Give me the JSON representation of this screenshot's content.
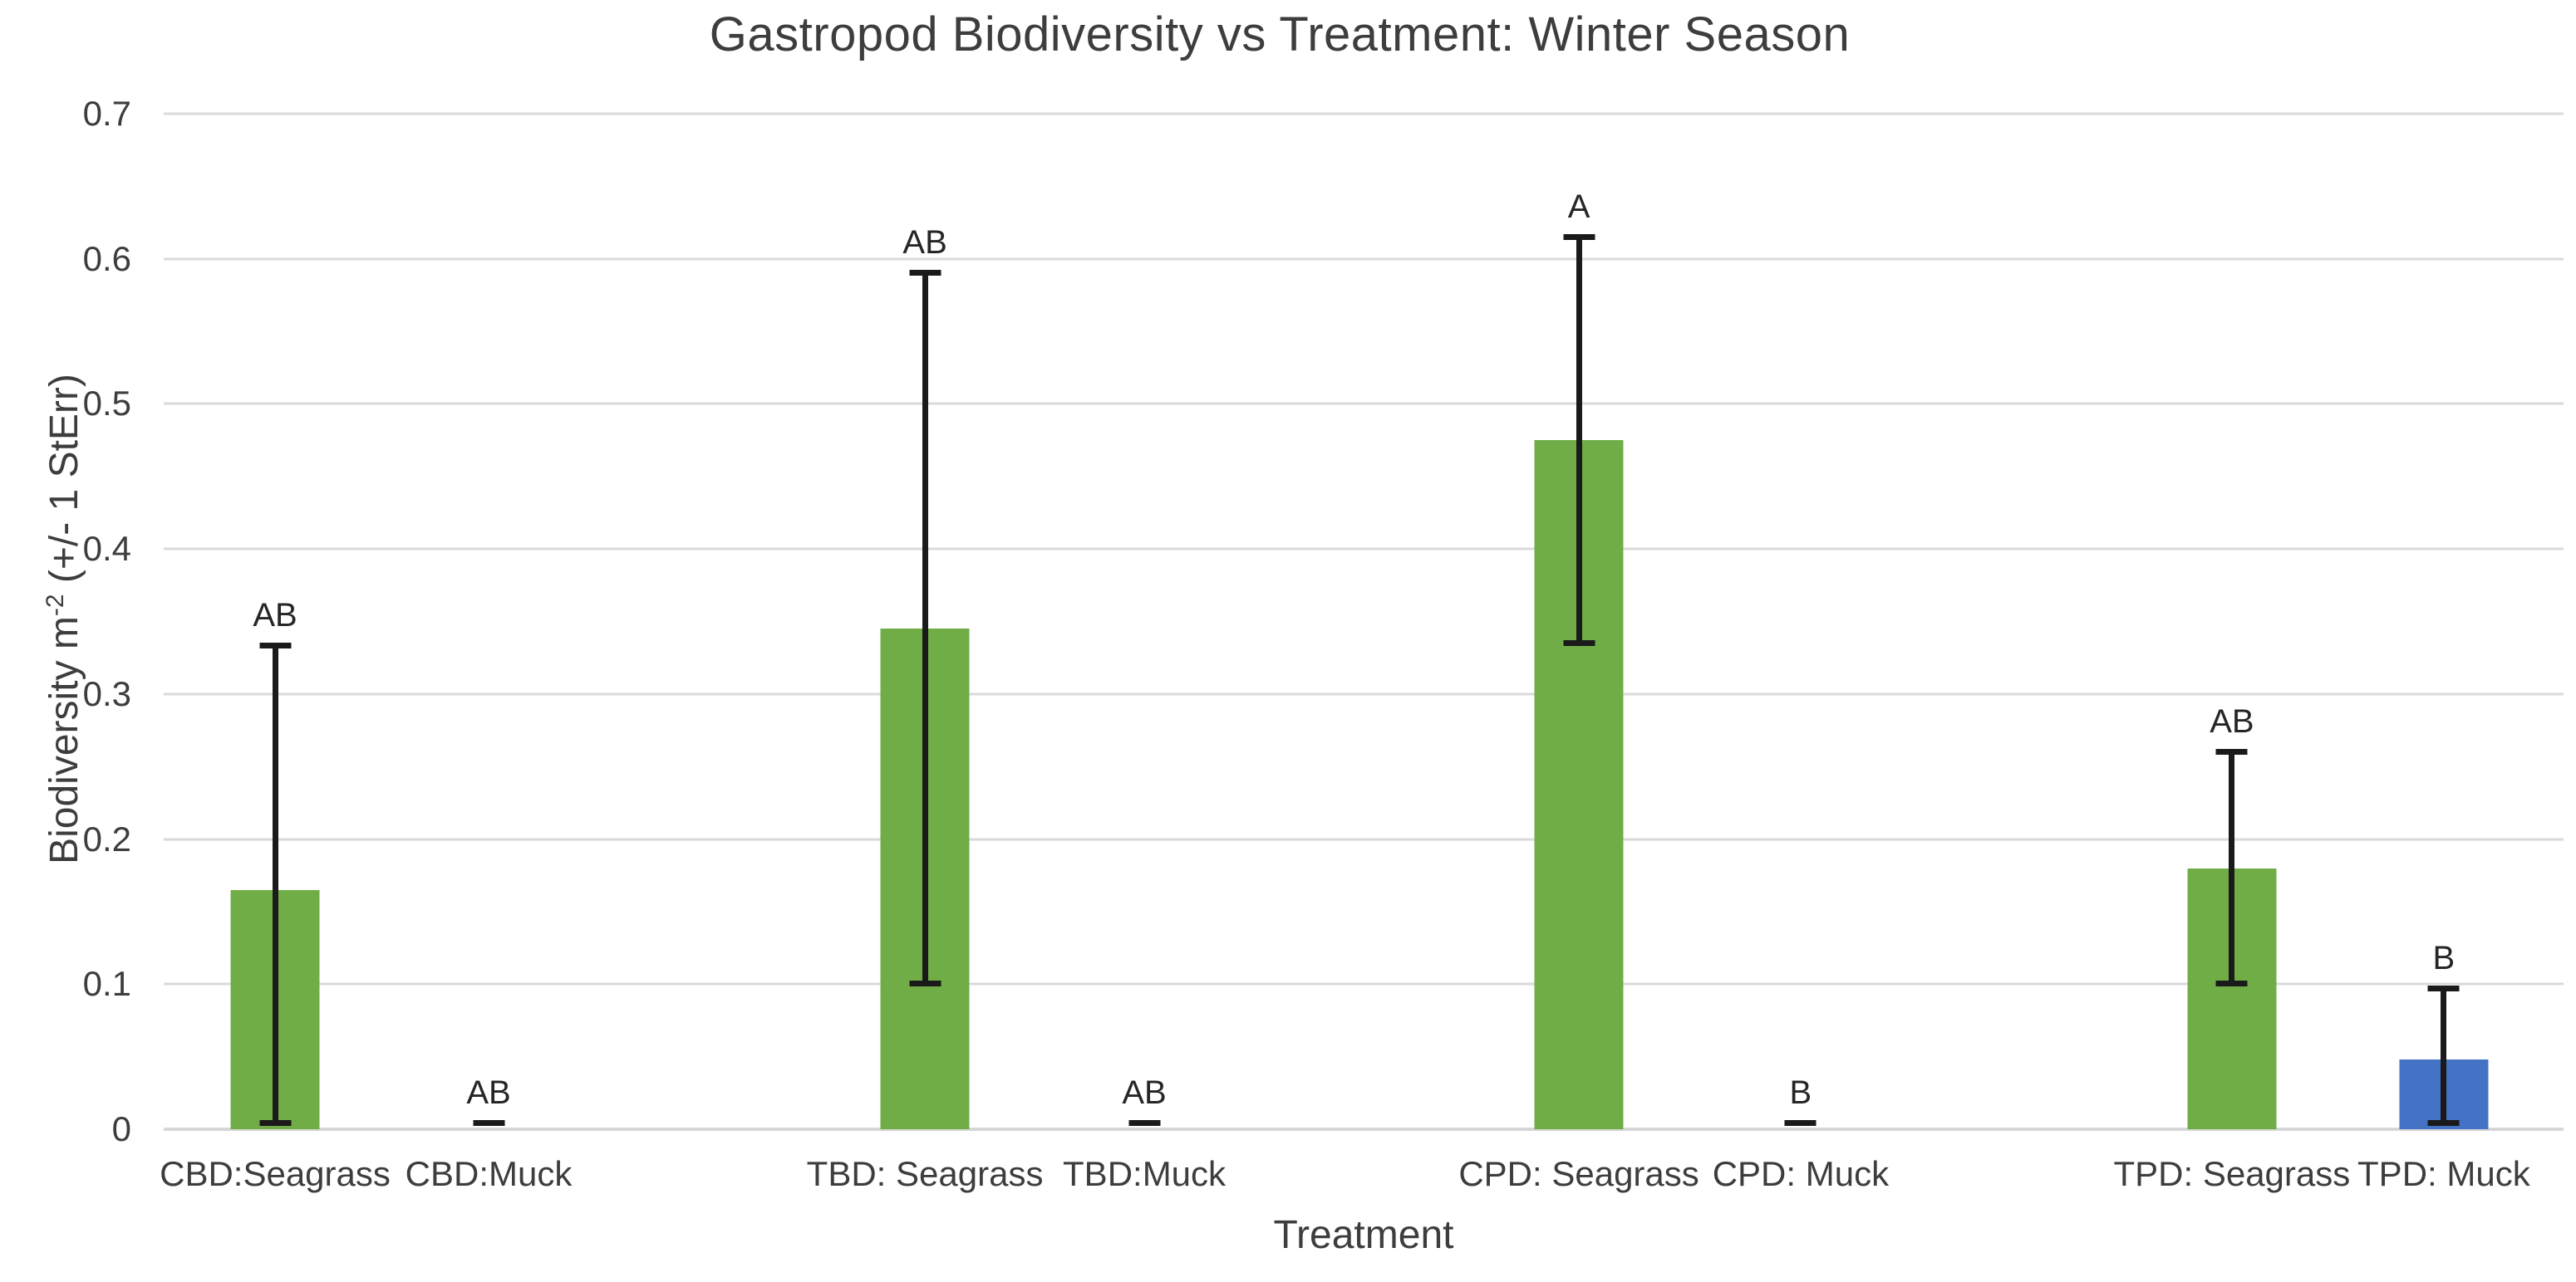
{
  "chart_data": {
    "type": "bar",
    "title": "Gastropod Biodiversity vs Treatment: Winter Season",
    "xlabel": "Treatment",
    "ylabel": "Biodiversity m⁻² (+/- 1 StErr)",
    "ylabel_prefix": "Biodiversity m",
    "ylabel_sup": "-2",
    "ylabel_suffix": " (+/- 1 StErr)",
    "ylim": [
      0,
      0.7
    ],
    "ytick_labels": [
      "0",
      "0.1",
      "0.2",
      "0.3",
      "0.4",
      "0.5",
      "0.6",
      "0.7"
    ],
    "grid": "horizontal",
    "legend": "none",
    "colors": {
      "seagrass_green": "#70AD47",
      "muck_blue": "#4472C4",
      "error_bar": "#1a1a1a",
      "gridline": "#dadada"
    },
    "categories": [
      "CBD:Seagrass",
      "CBD:Muck",
      "TBD: Seagrass",
      "TBD:Muck",
      "CPD: Seagrass",
      "CPD: Muck",
      "TPD: Seagrass",
      "TPD: Muck"
    ],
    "bars": [
      {
        "label": "CBD:Seagrass",
        "value": 0.165,
        "err_low": 0.004,
        "err_high": 0.333,
        "letter": "AB",
        "color": "#70AD47"
      },
      {
        "label": "CBD:Muck",
        "value": 0.0,
        "err_low": 0.0,
        "err_high": 0.004,
        "letter": "AB",
        "color": "#70AD47"
      },
      {
        "label": "TBD: Seagrass",
        "value": 0.345,
        "err_low": 0.1,
        "err_high": 0.59,
        "letter": "AB",
        "color": "#70AD47"
      },
      {
        "label": "TBD:Muck",
        "value": 0.0,
        "err_low": 0.0,
        "err_high": 0.004,
        "letter": "AB",
        "color": "#70AD47"
      },
      {
        "label": "CPD: Seagrass",
        "value": 0.475,
        "err_low": 0.335,
        "err_high": 0.615,
        "letter": "A",
        "color": "#70AD47"
      },
      {
        "label": "CPD: Muck",
        "value": 0.0,
        "err_low": 0.0,
        "err_high": 0.004,
        "letter": "B",
        "color": "#70AD47"
      },
      {
        "label": "TPD: Seagrass",
        "value": 0.18,
        "err_low": 0.1,
        "err_high": 0.26,
        "letter": "AB",
        "color": "#70AD47"
      },
      {
        "label": "TPD: Muck",
        "value": 0.048,
        "err_low": 0.004,
        "err_high": 0.097,
        "letter": "B",
        "color": "#4472C4"
      }
    ]
  }
}
